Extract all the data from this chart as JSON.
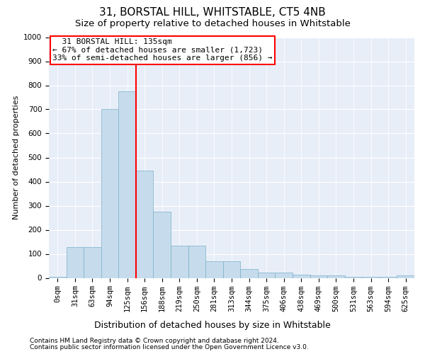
{
  "title1": "31, BORSTAL HILL, WHITSTABLE, CT5 4NB",
  "title2": "Size of property relative to detached houses in Whitstable",
  "xlabel": "Distribution of detached houses by size in Whitstable",
  "ylabel": "Number of detached properties",
  "footer1": "Contains HM Land Registry data © Crown copyright and database right 2024.",
  "footer2": "Contains public sector information licensed under the Open Government Licence v3.0.",
  "annotation_line1": "31 BORSTAL HILL: 135sqm",
  "annotation_line2": "← 67% of detached houses are smaller (1,723)",
  "annotation_line3": "33% of semi-detached houses are larger (856) →",
  "bar_values": [
    5,
    128,
    128,
    700,
    775,
    445,
    275,
    133,
    133,
    70,
    70,
    38,
    22,
    22,
    12,
    10,
    10,
    5,
    5,
    5,
    10
  ],
  "categories": [
    "0sqm",
    "31sqm",
    "63sqm",
    "94sqm",
    "125sqm",
    "156sqm",
    "188sqm",
    "219sqm",
    "250sqm",
    "281sqm",
    "313sqm",
    "344sqm",
    "375sqm",
    "406sqm",
    "438sqm",
    "469sqm",
    "500sqm",
    "531sqm",
    "563sqm",
    "594sqm",
    "625sqm"
  ],
  "bar_color": "#c6dcec",
  "bar_edge_color": "#7aafc8",
  "vline_color": "red",
  "ylim": [
    0,
    1000
  ],
  "yticks": [
    0,
    100,
    200,
    300,
    400,
    500,
    600,
    700,
    800,
    900,
    1000
  ],
  "bg_color": "#e8eef8",
  "grid_color": "white",
  "title1_fontsize": 11,
  "title2_fontsize": 9.5,
  "annotation_fontsize": 8,
  "ylabel_fontsize": 8,
  "xlabel_fontsize": 9,
  "footer_fontsize": 6.5,
  "tick_fontsize": 7.5
}
